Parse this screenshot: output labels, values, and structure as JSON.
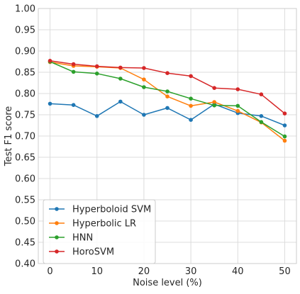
{
  "chart_data": {
    "type": "line",
    "title": "",
    "xlabel": "Noise level (%)",
    "ylabel": "Test F1 score",
    "xlim": [
      -2.5,
      52.5
    ],
    "ylim": [
      0.4,
      1.0
    ],
    "xticks": [
      0,
      10,
      20,
      30,
      40,
      50
    ],
    "xtick_labels": [
      "0",
      "10",
      "20",
      "30",
      "40",
      "50"
    ],
    "yticks": [
      0.4,
      0.45,
      0.5,
      0.55,
      0.6,
      0.65,
      0.7,
      0.75,
      0.8,
      0.85,
      0.9,
      0.95,
      1.0
    ],
    "ytick_labels": [
      "0.40",
      "0.45",
      "0.50",
      "0.55",
      "0.60",
      "0.65",
      "0.70",
      "0.75",
      "0.80",
      "0.85",
      "0.90",
      "0.95",
      "1.00"
    ],
    "grid": true,
    "legend_position": "lower-left",
    "x": [
      0,
      5,
      10,
      15,
      20,
      25,
      30,
      35,
      40,
      45,
      50
    ],
    "series": [
      {
        "name": "Hyperboloid SVM",
        "color": "#1f77b4",
        "values": [
          0.776,
          0.773,
          0.747,
          0.781,
          0.75,
          0.766,
          0.738,
          0.775,
          0.754,
          0.747,
          0.725
        ]
      },
      {
        "name": "Hyperbolic LR",
        "color": "#ff7f0e",
        "values": [
          0.874,
          0.865,
          0.863,
          0.86,
          0.833,
          0.793,
          0.771,
          0.78,
          0.759,
          0.732,
          0.689
        ]
      },
      {
        "name": "HNN",
        "color": "#2ca02c",
        "values": [
          0.875,
          0.851,
          0.847,
          0.835,
          0.815,
          0.805,
          0.788,
          0.772,
          0.771,
          0.733,
          0.699
        ]
      },
      {
        "name": "HoroSVM",
        "color": "#d62728",
        "values": [
          0.877,
          0.869,
          0.864,
          0.861,
          0.86,
          0.848,
          0.841,
          0.813,
          0.81,
          0.798,
          0.753
        ]
      }
    ]
  }
}
